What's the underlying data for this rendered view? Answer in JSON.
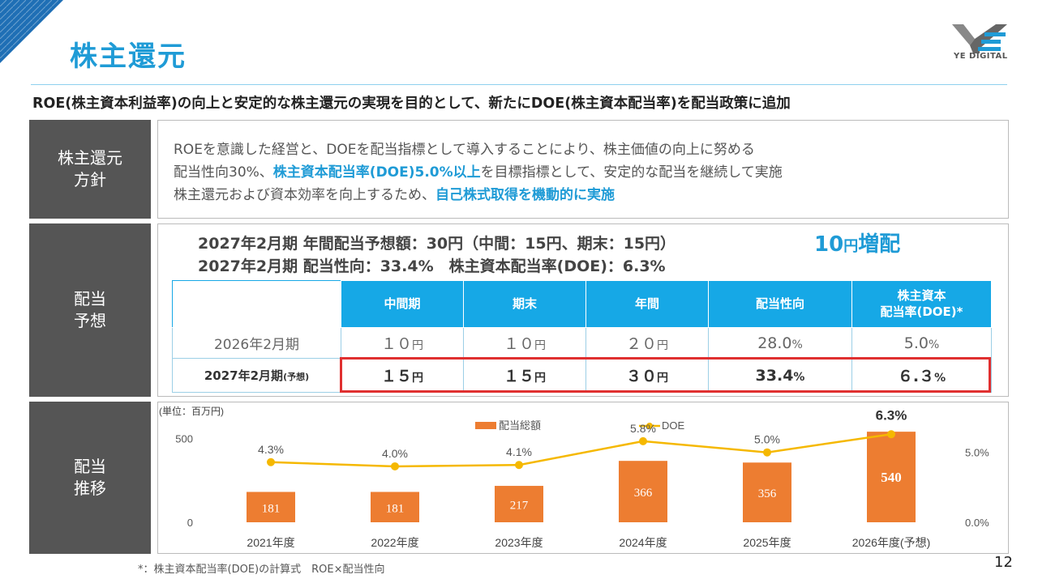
{
  "title": "株主還元",
  "logo_text": "YE DIGITAL",
  "subtitle": "ROE(株主資本利益率)の向上と安定的な株主還元の実現を目的として、新たにDOE(株主資本配当率)を配当政策に追加",
  "sections": {
    "policy": "株主還元\n方針",
    "forecast": "配当\n予想",
    "trend": "配当\n推移"
  },
  "policy": {
    "line1": "ROEを意識した経営と、DOEを配当指標として導入することにより、株主価値の向上に努める",
    "line2_a": "配当性向30%、",
    "line2_hl": "株主資本配当率(DOE)5.0%以上",
    "line2_b": "を目標指標として、安定的な配当を継続して実施",
    "line3_a": "株主還元および資本効率を向上するため、",
    "line3_hl": "自己株式取得を機動的に実施"
  },
  "forecast": {
    "line1": "2027年2月期 年間配当予想額：30円（中間：15円、期末：15円）",
    "line2": "2027年2月期 配当性向：33.4%　株主資本配当率(DOE)：6.3%",
    "increase_num": "10",
    "increase_unit": "円",
    "increase_label": "増配"
  },
  "table": {
    "headers": [
      "中間期",
      "期末",
      "年間",
      "配当性向",
      "株主資本\n配当率(DOE)*"
    ],
    "rows": [
      {
        "label": "2026年2月期",
        "label_small": "",
        "cells": [
          [
            "１０",
            "円"
          ],
          [
            "１０",
            "円"
          ],
          [
            "２０",
            "円"
          ],
          [
            "28.0",
            "%"
          ],
          [
            "5.0",
            "%"
          ]
        ]
      },
      {
        "label": "2027年2月期",
        "label_small": "(予想)",
        "cells": [
          [
            "１５",
            "円"
          ],
          [
            "１５",
            "円"
          ],
          [
            "３０",
            "円"
          ],
          [
            "33.4",
            "%"
          ],
          [
            "６.３",
            "%"
          ]
        ]
      }
    ]
  },
  "chart_data": {
    "type": "bar+line",
    "unit_label": "(単位：百万円)",
    "categories": [
      "2021年度",
      "2022年度",
      "2023年度",
      "2024年度",
      "2025年度",
      "2026年度(予想)"
    ],
    "series": [
      {
        "name": "配当総額",
        "type": "bar",
        "values": [
          181,
          181,
          217,
          366,
          356,
          540
        ],
        "labels": [
          "181",
          "181",
          "217",
          "366",
          "356",
          "540"
        ]
      },
      {
        "name": "DOE",
        "type": "line",
        "values": [
          4.3,
          4.0,
          4.1,
          5.8,
          5.0,
          6.3
        ],
        "labels": [
          "4.3%",
          "4.0%",
          "4.1%",
          "5.8%",
          "5.0%",
          "6.3%"
        ]
      }
    ],
    "left_axis": {
      "ticks": [
        "500",
        "0"
      ],
      "range": [
        0,
        700
      ]
    },
    "right_axis": {
      "ticks": [
        "5.0%",
        "0.0%"
      ],
      "range": [
        0,
        8.4
      ]
    }
  },
  "colors": {
    "accent": "#1f9bd6",
    "bar": "#ed7d31",
    "line": "#f5b800",
    "label_bg": "#555555"
  },
  "footnote": "*：株主資本配当率(DOE)の計算式　ROE×配当性向",
  "page_number": "12"
}
